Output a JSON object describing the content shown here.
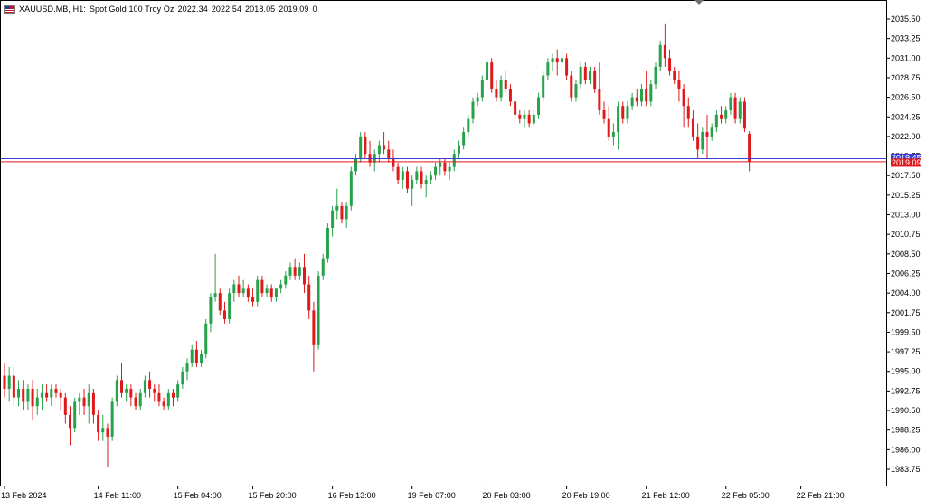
{
  "header": {
    "symbol": "XAUUSD.MB, H1:",
    "description": "Spot Gold 100 Troy Oz",
    "open": "2022.34",
    "high": "2022.54",
    "low": "2018.05",
    "close": "2019.09",
    "volume": "0"
  },
  "price_tags": {
    "ask": "2019.45",
    "bid": "2019.09"
  },
  "colors": {
    "bull": "#26a24a",
    "bear": "#e0191a",
    "wick_bull": "#26a24a",
    "wick_bear": "#e0191a",
    "bid_line": "#e0191a",
    "ask_line": "#3b3bd6",
    "axis": "#000000"
  },
  "chart_data": {
    "type": "candlestick",
    "ylim": [
      1982.0,
      2037.5
    ],
    "y_ticks": [
      "2035.50",
      "2033.25",
      "2031.00",
      "2028.75",
      "2026.50",
      "2024.25",
      "2022.00",
      "2019.75",
      "2017.50",
      "2015.25",
      "2013.00",
      "2010.75",
      "2008.50",
      "2006.25",
      "2004.00",
      "2001.75",
      "1999.50",
      "1997.25",
      "1995.00",
      "1992.75",
      "1990.50",
      "1988.25",
      "1986.00",
      "1983.75"
    ],
    "x_ticks": [
      {
        "label": "13 Feb 2024",
        "index": 0
      },
      {
        "label": "14 Feb 11:00",
        "index": 20
      },
      {
        "label": "15 Feb 04:00",
        "index": 37
      },
      {
        "label": "15 Feb 20:00",
        "index": 53
      },
      {
        "label": "16 Feb 13:00",
        "index": 70
      },
      {
        "label": "19 Feb 07:00",
        "index": 87
      },
      {
        "label": "20 Feb 03:00",
        "index": 103
      },
      {
        "label": "20 Feb 19:00",
        "index": 120
      },
      {
        "label": "21 Feb 12:00",
        "index": 137
      },
      {
        "label": "22 Feb 05:00",
        "index": 154
      },
      {
        "label": "22 Feb 21:00",
        "index": 170
      }
    ],
    "candles": [
      [
        1994.5,
        1996.0,
        1992.0,
        1993.0
      ],
      [
        1993.0,
        1995.5,
        1991.5,
        1994.5
      ],
      [
        1994.5,
        1995.5,
        1991.0,
        1992.0
      ],
      [
        1992.0,
        1994.0,
        1991.0,
        1993.0
      ],
      [
        1993.0,
        1994.0,
        1990.5,
        1991.5
      ],
      [
        1991.5,
        1993.5,
        1990.5,
        1993.0
      ],
      [
        1993.0,
        1994.0,
        1989.5,
        1991.0
      ],
      [
        1991.0,
        1993.0,
        1990.0,
        1992.0
      ],
      [
        1992.0,
        1993.5,
        1990.5,
        1992.5
      ],
      [
        1992.5,
        1993.5,
        1991.5,
        1992.0
      ],
      [
        1992.0,
        1993.5,
        1991.0,
        1993.0
      ],
      [
        1993.0,
        1993.5,
        1992.0,
        1992.5
      ],
      [
        1992.5,
        1993.0,
        1990.5,
        1992.0
      ],
      [
        1992.0,
        1992.5,
        1989.0,
        1990.0
      ],
      [
        1990.0,
        1991.0,
        1986.5,
        1988.5
      ],
      [
        1988.5,
        1992.0,
        1988.0,
        1991.5
      ],
      [
        1991.5,
        1992.5,
        1990.0,
        1992.0
      ],
      [
        1992.0,
        1993.0,
        1990.0,
        1991.0
      ],
      [
        1991.0,
        1993.5,
        1989.0,
        1992.5
      ],
      [
        1992.5,
        1993.0,
        1989.0,
        1990.0
      ],
      [
        1990.0,
        1990.5,
        1987.0,
        1988.0
      ],
      [
        1988.0,
        1990.0,
        1987.0,
        1988.5
      ],
      [
        1988.5,
        1989.0,
        1984.0,
        1987.5
      ],
      [
        1987.5,
        1992.0,
        1987.0,
        1991.5
      ],
      [
        1991.5,
        1994.5,
        1991.0,
        1994.0
      ],
      [
        1994.0,
        1996.0,
        1992.0,
        1992.5
      ],
      [
        1992.5,
        1993.5,
        1991.5,
        1993.0
      ],
      [
        1993.0,
        1993.5,
        1991.0,
        1992.0
      ],
      [
        1992.0,
        1992.5,
        1990.5,
        1991.0
      ],
      [
        1991.0,
        1993.0,
        1990.5,
        1992.5
      ],
      [
        1992.5,
        1994.5,
        1992.0,
        1994.0
      ],
      [
        1994.0,
        1995.0,
        1992.0,
        1993.0
      ],
      [
        1993.0,
        1993.5,
        1991.5,
        1992.5
      ],
      [
        1992.5,
        1993.5,
        1991.0,
        1991.5
      ],
      [
        1991.5,
        1992.0,
        1990.5,
        1991.0
      ],
      [
        1991.0,
        1993.0,
        1990.5,
        1992.5
      ],
      [
        1992.5,
        1993.0,
        1991.0,
        1992.0
      ],
      [
        1992.0,
        1994.0,
        1991.5,
        1993.5
      ],
      [
        1993.5,
        1995.5,
        1993.0,
        1995.0
      ],
      [
        1995.0,
        1996.5,
        1994.0,
        1996.0
      ],
      [
        1996.0,
        1998.0,
        1995.5,
        1997.5
      ],
      [
        1997.5,
        1998.5,
        1995.5,
        1996.0
      ],
      [
        1996.0,
        1997.5,
        1995.5,
        1997.0
      ],
      [
        1997.0,
        2001.0,
        1996.5,
        2000.5
      ],
      [
        2000.5,
        2004.0,
        1999.5,
        2003.5
      ],
      [
        2003.5,
        2008.5,
        2003.0,
        2004.0
      ],
      [
        2004.0,
        2004.5,
        2001.5,
        2002.0
      ],
      [
        2002.0,
        2003.0,
        2000.5,
        2001.0
      ],
      [
        2001.0,
        2004.5,
        2000.5,
        2004.0
      ],
      [
        2004.0,
        2005.5,
        2003.0,
        2005.0
      ],
      [
        2005.0,
        2006.0,
        2003.5,
        2004.0
      ],
      [
        2004.0,
        2005.5,
        2003.5,
        2004.5
      ],
      [
        2004.5,
        2005.0,
        2003.0,
        2003.5
      ],
      [
        2003.5,
        2004.5,
        2002.5,
        2003.0
      ],
      [
        2003.0,
        2006.0,
        2002.5,
        2005.5
      ],
      [
        2005.5,
        2006.0,
        2003.5,
        2004.0
      ],
      [
        2004.0,
        2005.0,
        2003.5,
        2004.5
      ],
      [
        2004.5,
        2005.0,
        2003.0,
        2003.5
      ],
      [
        2003.5,
        2004.5,
        2003.0,
        2004.5
      ],
      [
        2004.5,
        2005.5,
        2004.0,
        2005.0
      ],
      [
        2005.0,
        2006.5,
        2004.5,
        2006.0
      ],
      [
        2006.0,
        2007.5,
        2005.5,
        2007.0
      ],
      [
        2007.0,
        2008.0,
        2005.5,
        2006.0
      ],
      [
        2006.0,
        2007.5,
        2005.5,
        2007.0
      ],
      [
        2007.0,
        2008.5,
        2004.0,
        2005.0
      ],
      [
        2005.0,
        2006.0,
        2001.0,
        2002.0
      ],
      [
        2002.0,
        2003.0,
        1995.0,
        1998.0
      ],
      [
        1998.0,
        2006.5,
        1997.5,
        2006.0
      ],
      [
        2006.0,
        2008.5,
        2005.5,
        2008.0
      ],
      [
        2008.0,
        2012.0,
        2007.5,
        2011.5
      ],
      [
        2011.5,
        2014.0,
        2010.5,
        2013.5
      ],
      [
        2013.5,
        2016.0,
        2012.5,
        2014.0
      ],
      [
        2014.0,
        2014.5,
        2012.0,
        2012.5
      ],
      [
        2012.5,
        2014.5,
        2011.5,
        2014.0
      ],
      [
        2014.0,
        2018.5,
        2013.5,
        2018.0
      ],
      [
        2018.0,
        2020.0,
        2017.5,
        2019.5
      ],
      [
        2019.5,
        2022.5,
        2019.0,
        2022.0
      ],
      [
        2022.0,
        2022.5,
        2019.5,
        2020.0
      ],
      [
        2020.0,
        2021.5,
        2018.5,
        2019.0
      ],
      [
        2019.0,
        2020.5,
        2018.0,
        2020.0
      ],
      [
        2020.0,
        2021.5,
        2019.0,
        2021.0
      ],
      [
        2021.0,
        2022.5,
        2020.0,
        2020.5
      ],
      [
        2020.5,
        2021.5,
        2019.0,
        2019.5
      ],
      [
        2019.5,
        2020.5,
        2018.0,
        2018.5
      ],
      [
        2018.5,
        2019.0,
        2016.5,
        2017.0
      ],
      [
        2017.0,
        2018.5,
        2016.0,
        2018.0
      ],
      [
        2018.0,
        2018.5,
        2015.5,
        2016.0
      ],
      [
        2016.0,
        2017.5,
        2014.0,
        2017.0
      ],
      [
        2017.0,
        2018.5,
        2016.5,
        2018.0
      ],
      [
        2018.0,
        2018.5,
        2016.0,
        2016.5
      ],
      [
        2016.5,
        2017.5,
        2015.0,
        2017.0
      ],
      [
        2017.0,
        2018.0,
        2016.5,
        2017.5
      ],
      [
        2017.5,
        2019.0,
        2017.0,
        2018.5
      ],
      [
        2018.5,
        2019.5,
        2017.5,
        2019.0
      ],
      [
        2019.0,
        2019.5,
        2017.5,
        2018.0
      ],
      [
        2018.0,
        2019.0,
        2017.0,
        2018.5
      ],
      [
        2018.5,
        2020.5,
        2018.0,
        2020.0
      ],
      [
        2020.0,
        2021.5,
        2019.5,
        2021.0
      ],
      [
        2021.0,
        2023.0,
        2020.5,
        2022.5
      ],
      [
        2022.5,
        2024.5,
        2022.0,
        2024.0
      ],
      [
        2024.0,
        2026.5,
        2023.5,
        2026.0
      ],
      [
        2026.0,
        2027.0,
        2025.5,
        2026.5
      ],
      [
        2026.5,
        2029.0,
        2026.0,
        2028.5
      ],
      [
        2028.5,
        2031.0,
        2028.0,
        2030.5
      ],
      [
        2030.5,
        2031.0,
        2027.0,
        2027.5
      ],
      [
        2027.5,
        2028.5,
        2026.0,
        2026.5
      ],
      [
        2026.5,
        2029.0,
        2026.0,
        2028.5
      ],
      [
        2028.5,
        2029.5,
        2027.0,
        2027.5
      ],
      [
        2027.5,
        2028.0,
        2025.5,
        2026.0
      ],
      [
        2026.0,
        2026.5,
        2024.0,
        2024.5
      ],
      [
        2024.5,
        2025.0,
        2023.5,
        2024.0
      ],
      [
        2024.0,
        2025.0,
        2023.0,
        2024.5
      ],
      [
        2024.5,
        2025.0,
        2023.0,
        2023.5
      ],
      [
        2023.5,
        2025.0,
        2023.0,
        2024.5
      ],
      [
        2024.5,
        2027.0,
        2024.0,
        2026.5
      ],
      [
        2026.5,
        2029.5,
        2026.0,
        2029.0
      ],
      [
        2029.0,
        2031.0,
        2028.5,
        2030.5
      ],
      [
        2030.5,
        2031.5,
        2029.5,
        2031.0
      ],
      [
        2031.0,
        2032.0,
        2029.0,
        2030.5
      ],
      [
        2030.5,
        2031.5,
        2029.5,
        2031.0
      ],
      [
        2031.0,
        2031.5,
        2028.5,
        2029.0
      ],
      [
        2029.0,
        2029.5,
        2026.0,
        2026.5
      ],
      [
        2026.5,
        2028.5,
        2026.0,
        2028.0
      ],
      [
        2028.0,
        2030.5,
        2027.5,
        2030.0
      ],
      [
        2030.0,
        2030.5,
        2028.0,
        2028.5
      ],
      [
        2028.5,
        2030.0,
        2028.0,
        2029.5
      ],
      [
        2029.5,
        2030.0,
        2027.0,
        2027.5
      ],
      [
        2027.5,
        2030.5,
        2024.5,
        2025.0
      ],
      [
        2025.0,
        2026.0,
        2023.5,
        2024.0
      ],
      [
        2024.0,
        2025.5,
        2021.5,
        2022.0
      ],
      [
        2022.0,
        2023.5,
        2021.0,
        2022.5
      ],
      [
        2022.5,
        2026.0,
        2020.5,
        2025.5
      ],
      [
        2025.5,
        2026.0,
        2023.5,
        2024.0
      ],
      [
        2024.0,
        2026.0,
        2023.5,
        2025.5
      ],
      [
        2025.5,
        2027.0,
        2025.0,
        2026.5
      ],
      [
        2026.5,
        2027.5,
        2025.5,
        2026.0
      ],
      [
        2026.0,
        2028.0,
        2025.5,
        2027.5
      ],
      [
        2027.5,
        2029.5,
        2025.5,
        2026.0
      ],
      [
        2026.0,
        2028.5,
        2025.5,
        2028.0
      ],
      [
        2028.0,
        2030.5,
        2027.5,
        2030.0
      ],
      [
        2030.0,
        2033.0,
        2029.5,
        2032.5
      ],
      [
        2032.5,
        2035.0,
        2030.0,
        2031.0
      ],
      [
        2031.0,
        2032.0,
        2029.0,
        2029.5
      ],
      [
        2029.5,
        2030.0,
        2028.0,
        2028.5
      ],
      [
        2028.5,
        2029.5,
        2026.0,
        2027.5
      ],
      [
        2027.5,
        2028.0,
        2023.0,
        2025.5
      ],
      [
        2025.5,
        2026.5,
        2023.0,
        2024.0
      ],
      [
        2024.0,
        2025.0,
        2021.5,
        2022.0
      ],
      [
        2022.0,
        2023.5,
        2019.5,
        2020.5
      ],
      [
        2020.5,
        2023.0,
        2020.0,
        2022.5
      ],
      [
        2022.5,
        2024.5,
        2019.5,
        2022.0
      ],
      [
        2022.0,
        2023.5,
        2021.5,
        2023.0
      ],
      [
        2023.0,
        2025.0,
        2022.5,
        2024.5
      ],
      [
        2024.5,
        2025.5,
        2023.5,
        2024.0
      ],
      [
        2024.0,
        2025.5,
        2023.5,
        2025.0
      ],
      [
        2025.0,
        2027.0,
        2024.5,
        2026.5
      ],
      [
        2026.5,
        2027.0,
        2023.5,
        2024.0
      ],
      [
        2024.0,
        2026.5,
        2023.5,
        2026.0
      ],
      [
        2026.0,
        2026.5,
        2022.5,
        2022.9
      ],
      [
        2022.3,
        2022.6,
        2018.0,
        2019.1
      ]
    ]
  }
}
